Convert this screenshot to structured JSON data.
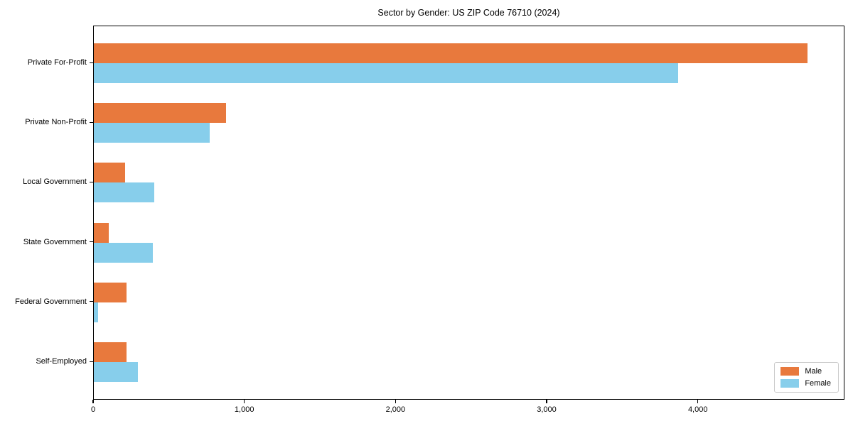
{
  "chart_data": {
    "type": "bar",
    "orientation": "horizontal",
    "title": "Sector by Gender: US ZIP Code 76710 (2024)",
    "categories": [
      "Private For-Profit",
      "Private Non-Profit",
      "Local Government",
      "State Government",
      "Federal Government",
      "Self-Employed"
    ],
    "series": [
      {
        "name": "Male",
        "color": "#e8793d",
        "values": [
          4720,
          875,
          205,
          100,
          215,
          215
        ]
      },
      {
        "name": "Female",
        "color": "#87ceeb",
        "values": [
          3865,
          765,
          400,
          390,
          30,
          290
        ]
      }
    ],
    "xlabel": "",
    "ylabel": "",
    "xlim": [
      0,
      4970
    ],
    "x_ticks": [
      {
        "value": 0,
        "label": "0"
      },
      {
        "value": 1000,
        "label": "1,000"
      },
      {
        "value": 2000,
        "label": "2,000"
      },
      {
        "value": 3000,
        "label": "3,000"
      },
      {
        "value": 4000,
        "label": "4,000"
      }
    ],
    "grid": false,
    "legend_position": "lower right"
  }
}
